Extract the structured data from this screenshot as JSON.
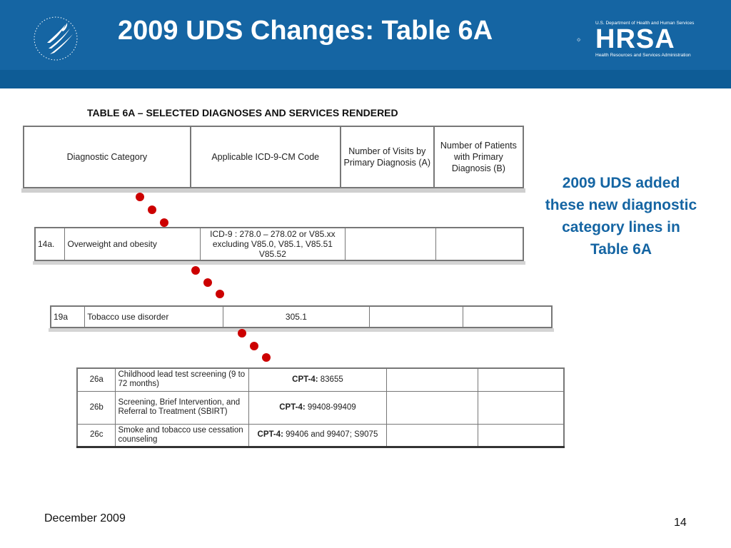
{
  "slide": {
    "title": "2009 UDS Changes: Table 6A",
    "note": "2009 UDS added these new diagnostic category lines in Table 6A",
    "footer_date": "December 2009",
    "page_number": "14",
    "header_color": "#1565a3",
    "dot_color": "#cc0000"
  },
  "logos": {
    "hhs_icon": "hhs-eagle-icon",
    "hrsa_top": "U.S. Department of Health and Human Services",
    "hrsa_word": "HRSA",
    "hrsa_bottom": "Health Resources and Services Administration"
  },
  "table_header": {
    "title": "TABLE 6A – SELECTED DIAGNOSES AND SERVICES RENDERED",
    "col_category": "Diagnostic Category",
    "col_code": "Applicable ICD-9-CM Code",
    "col_visits": "Number of Visits by Primary Diagnosis (A)",
    "col_patients": "Number of Patients with Primary Diagnosis (B)"
  },
  "row14a": {
    "line": "14a.",
    "category": "Overweight and obesity",
    "code": "ICD-9 :  278.0 – 278.02 or V85.xx excluding V85.0, V85.1, V85.51 V85.52"
  },
  "row19a": {
    "line": "19a",
    "category": "Tobacco use disorder",
    "code": "305.1"
  },
  "rows26": [
    {
      "line": "26a",
      "category": "Childhood lead test screening (9 to 72 months)",
      "code_prefix": "CPT-4:",
      "code": " 83655"
    },
    {
      "line": "26b",
      "category": "Screening, Brief Intervention, and Referral to Treatment (SBIRT)",
      "code_prefix": "CPT-4:",
      "code": " 99408-99409"
    },
    {
      "line": "26c",
      "category": "Smoke and tobacco use cessation counseling",
      "code_prefix": "CPT-4:",
      "code": "  99406 and 99407; S9075"
    }
  ]
}
